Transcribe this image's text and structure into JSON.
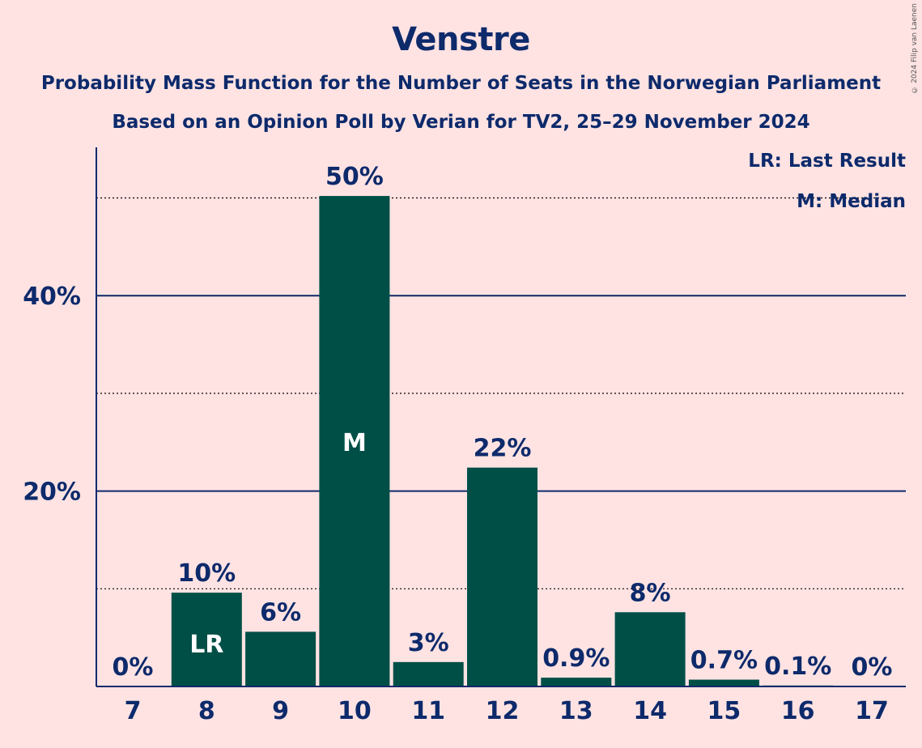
{
  "chart_data": {
    "type": "bar",
    "title": "Venstre",
    "subtitle": "Probability Mass Function for the Number of Seats in the Norwegian Parliament",
    "subtitle2": "Based on an Opinion Poll by Verian for TV2, 25–29 November 2024",
    "categories": [
      "7",
      "8",
      "9",
      "10",
      "11",
      "12",
      "13",
      "14",
      "15",
      "16",
      "17"
    ],
    "values": [
      0,
      9.6,
      5.6,
      50.2,
      2.5,
      22.4,
      0.9,
      7.6,
      0.7,
      0.1,
      0
    ],
    "data_labels": [
      "0%",
      "10%",
      "6%",
      "50%",
      "3%",
      "22%",
      "0.9%",
      "8%",
      "0.7%",
      "0.1%",
      "0%"
    ],
    "bar_inner_labels": {
      "8": "LR",
      "10": "M"
    },
    "ylim": [
      0,
      55
    ],
    "yticks": [
      20,
      40
    ],
    "ytick_labels": [
      "20%",
      "40%"
    ],
    "dotted_gridlines": [
      10,
      30,
      50
    ],
    "bar_color": "#004F46",
    "axis_color": "#0D2A6B",
    "legend": [
      "LR: Last Result",
      "M: Median"
    ],
    "legend_position": "top-right",
    "copyright": "© 2024 Filip van Laenen"
  }
}
